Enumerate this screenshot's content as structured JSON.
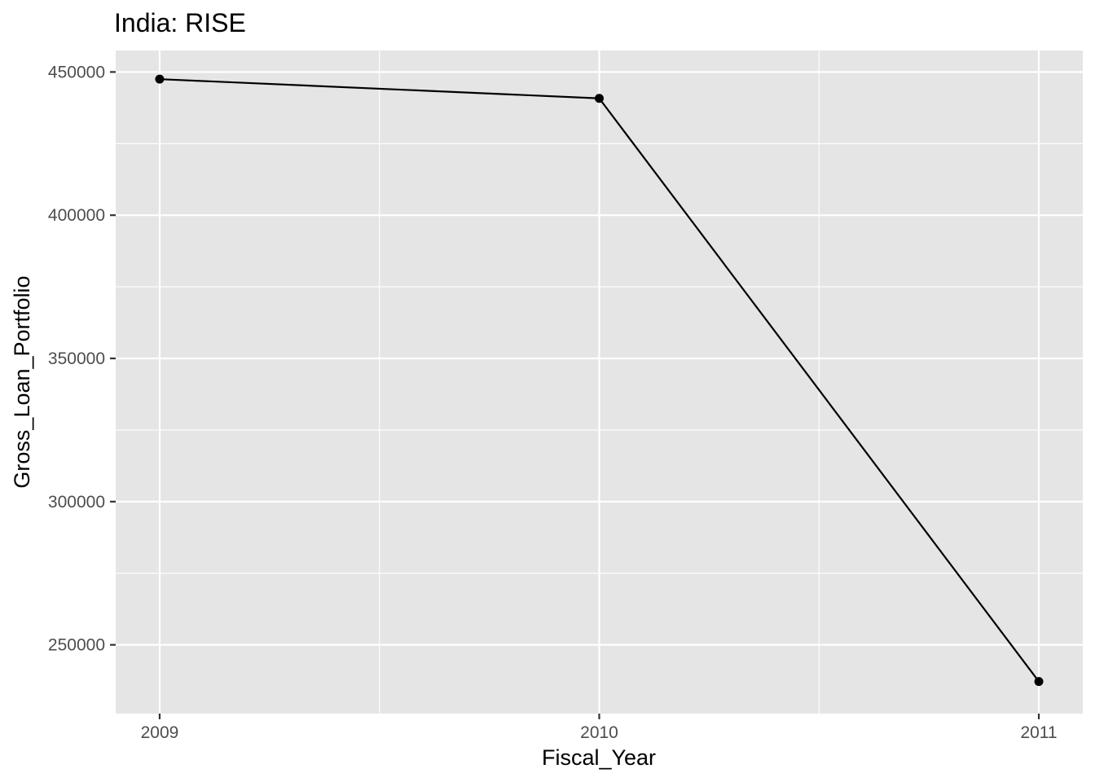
{
  "chart_data": {
    "type": "line",
    "title": "India:  RISE",
    "xlabel": "Fiscal_Year",
    "ylabel": "Gross_Loan_Portfolio",
    "x": [
      2009,
      2010,
      2011
    ],
    "x_tick_labels": [
      "2009",
      "2010",
      "2011"
    ],
    "y_ticks": [
      250000,
      300000,
      350000,
      400000,
      450000
    ],
    "y_tick_labels": [
      "250000",
      "300000",
      "350000",
      "400000",
      "450000"
    ],
    "xlim": [
      2008.9,
      2011.1
    ],
    "ylim": [
      226000,
      457500
    ],
    "series": [
      {
        "values": [
          447500,
          440800,
          237200
        ]
      }
    ],
    "grid": true,
    "colors": {
      "panel": "#e5e5e5",
      "grid": "#ffffff",
      "series": "#000000"
    }
  }
}
